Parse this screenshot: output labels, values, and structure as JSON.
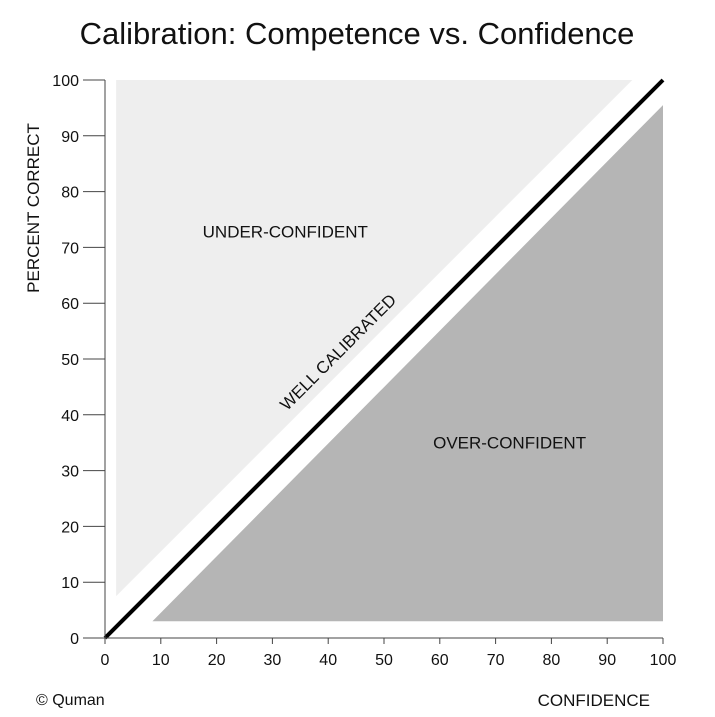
{
  "chart_data": {
    "type": "area",
    "title": "Calibration: Competence vs. Confidence",
    "xlabel": "CONFIDENCE",
    "ylabel": "PERCENT CORRECT",
    "xlim": [
      0,
      100
    ],
    "ylim": [
      0,
      100
    ],
    "xticks": [
      "0",
      "10",
      "20",
      "30",
      "40",
      "50",
      "60",
      "70",
      "80",
      "90",
      "100"
    ],
    "yticks": [
      "0",
      "10",
      "20",
      "30",
      "40",
      "50",
      "60",
      "70",
      "80",
      "90",
      "100"
    ],
    "grid": false,
    "series": [
      {
        "name": "WELL CALIBRATED",
        "x": [
          0,
          100
        ],
        "y": [
          0,
          100
        ]
      }
    ],
    "regions": [
      {
        "label": "UNDER-CONFIDENT",
        "color": "#eeeeee"
      },
      {
        "label": "OVER-CONFIDENT",
        "color": "#b5b5b5"
      }
    ],
    "line_color": "#000000"
  },
  "credit": "© Quman"
}
